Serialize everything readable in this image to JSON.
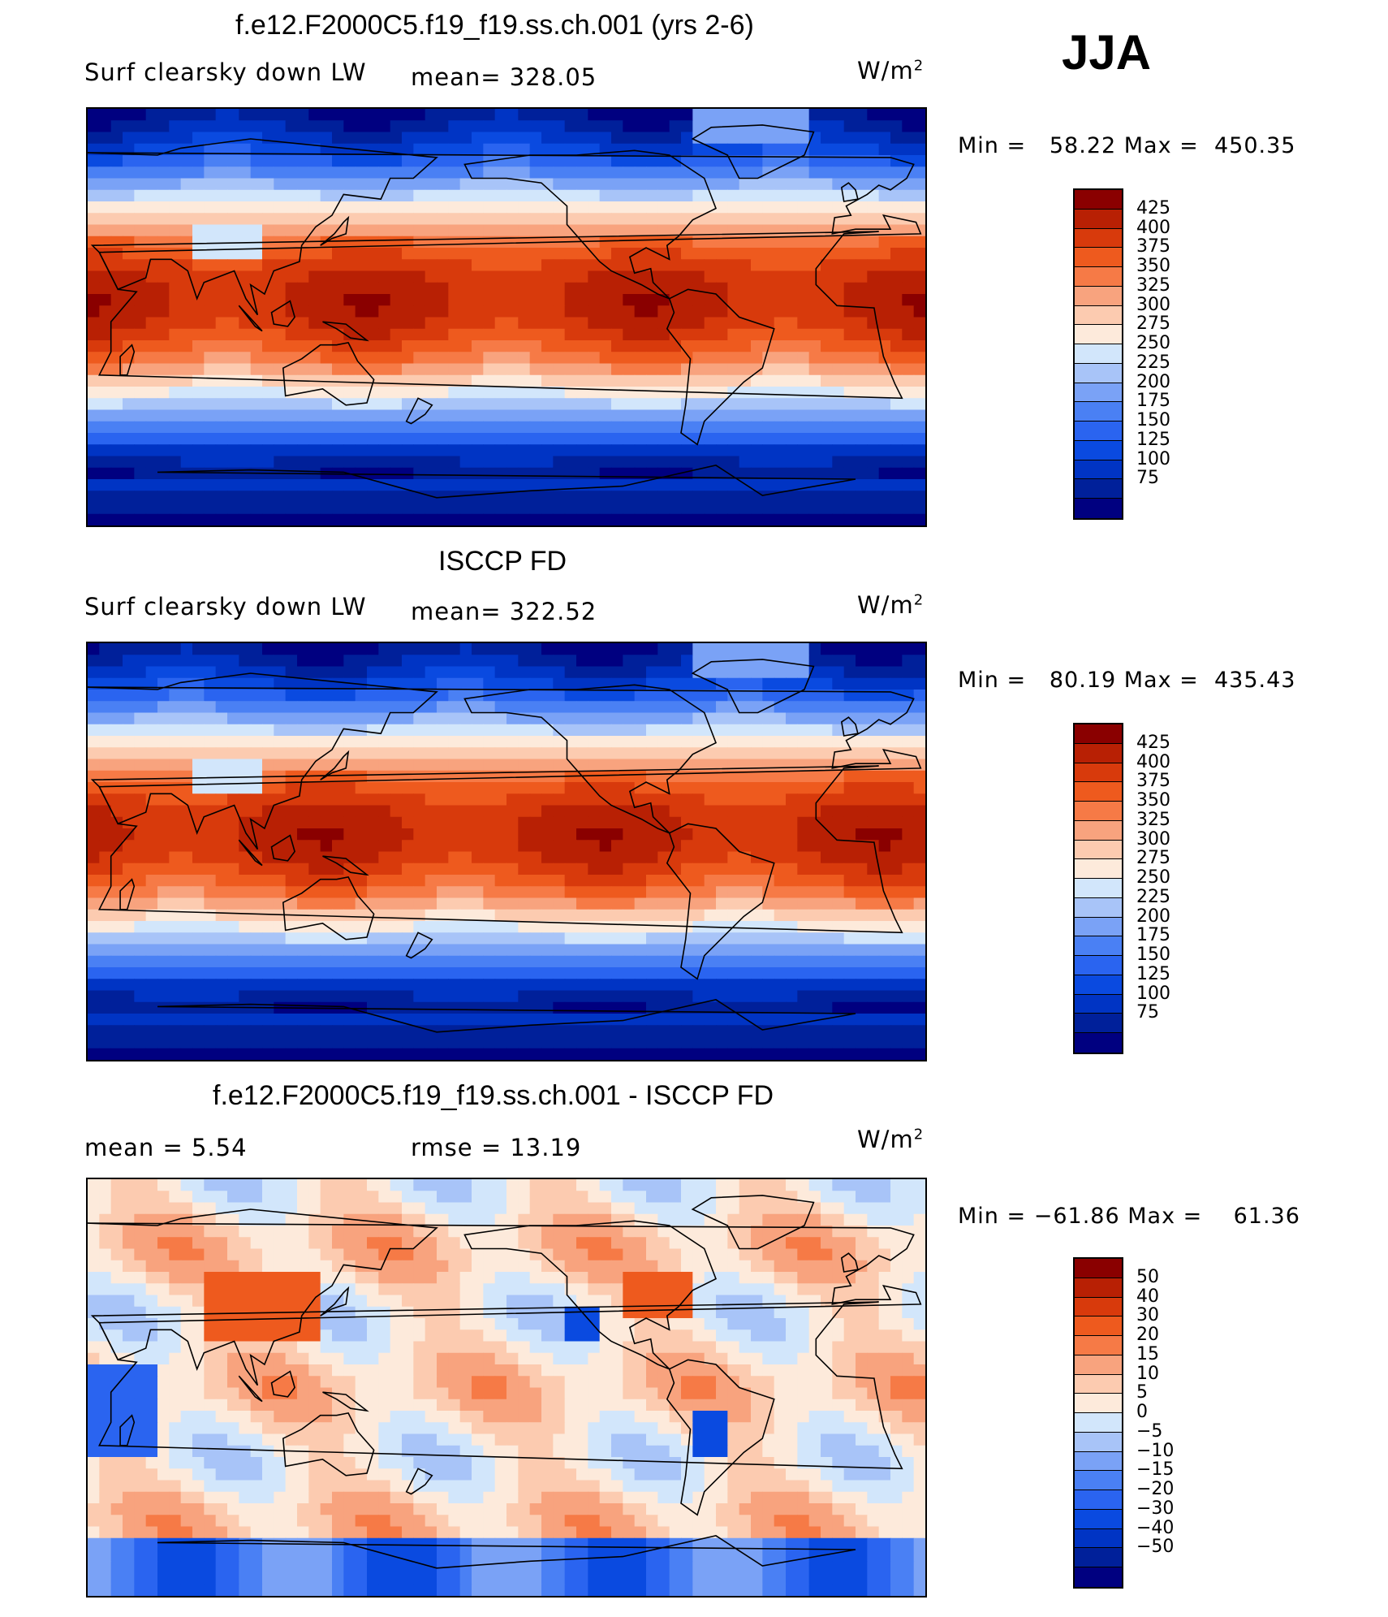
{
  "season": "JJA",
  "colors": {
    "full": [
      "#000080",
      "#00209a",
      "#0034c4",
      "#0a4ae0",
      "#2a64f0",
      "#4a80f4",
      "#7aa2f6",
      "#a8c4f8",
      "#d2e6fb",
      "#fdeadb",
      "#fccbb0",
      "#f8a37e",
      "#f67a46",
      "#ee5a1e",
      "#d83a0c",
      "#b82004",
      "#8a0000"
    ],
    "diff": [
      "#000080",
      "#00209a",
      "#0034c4",
      "#0a4ae0",
      "#2a64f0",
      "#4a80f4",
      "#7aa2f6",
      "#a8c4f8",
      "#d2e6fb",
      "#fdeadb",
      "#fccbb0",
      "#f8a37e",
      "#f67a46",
      "#ee5a1e",
      "#d83a0c",
      "#b82004",
      "#8a0000"
    ]
  },
  "panels": [
    {
      "title": "f.e12.F2000C5.f19_f19.ss.ch.001 (yrs 2-6)",
      "left_label": "Surf  clearsky  down  LW",
      "stat_label": "mean=  328.05",
      "units": "W/m",
      "units_exp": "2",
      "min_label": "Min  =",
      "min_value": "58.22",
      "max_label": "Max  =",
      "max_value": "450.35",
      "levels": [
        "425",
        "400",
        "375",
        "350",
        "325",
        "300",
        "275",
        "250",
        "225",
        "200",
        "175",
        "150",
        "125",
        "100",
        "75"
      ],
      "kind": "full",
      "tint": 0
    },
    {
      "title": "ISCCP FD",
      "left_label": "Surf  clearsky  down  LW",
      "stat_label": "mean=  322.52",
      "units": "W/m",
      "units_exp": "2",
      "min_label": "Min  =",
      "min_value": "80.19",
      "max_label": "Max  =",
      "max_value": "435.43",
      "levels": [
        "425",
        "400",
        "375",
        "350",
        "325",
        "300",
        "275",
        "250",
        "225",
        "200",
        "175",
        "150",
        "125",
        "100",
        "75"
      ],
      "kind": "full",
      "tint": 1
    },
    {
      "title": "f.e12.F2000C5.f19_f19.ss.ch.001 - ISCCP FD",
      "left_label": "mean  =     5.54",
      "stat_label": "rmse  =    13.19",
      "units": "W/m",
      "units_exp": "2",
      "min_label": "Min  =",
      "min_value": "−61.86",
      "max_label": "Max  =",
      "max_value": "61.36",
      "levels": [
        "50",
        "40",
        "30",
        "20",
        "15",
        "10",
        "5",
        "0",
        "−5",
        "−10",
        "−15",
        "−20",
        "−30",
        "−40",
        "−50"
      ],
      "kind": "diff",
      "tint": 2
    }
  ]
}
